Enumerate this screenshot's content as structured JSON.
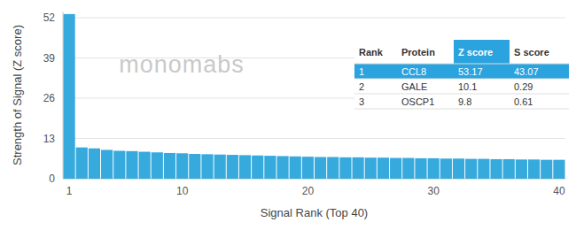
{
  "chart_data": {
    "type": "bar",
    "x_label": "Signal Rank (Top 40)",
    "y_label": "Strength of Signal (Z score)",
    "annotations": [
      "monomabs"
    ],
    "x": [
      1,
      2,
      3,
      4,
      5,
      6,
      7,
      8,
      9,
      10,
      11,
      12,
      13,
      14,
      15,
      16,
      17,
      18,
      19,
      20,
      21,
      22,
      23,
      24,
      25,
      26,
      27,
      28,
      29,
      30,
      31,
      32,
      33,
      34,
      35,
      36,
      37,
      38,
      39,
      40
    ],
    "values": [
      53.17,
      10.1,
      9.8,
      9.3,
      9.0,
      8.9,
      8.7,
      8.5,
      8.3,
      8.2,
      8.0,
      7.9,
      7.8,
      7.7,
      7.6,
      7.5,
      7.4,
      7.3,
      7.2,
      7.1,
      7.0,
      7.0,
      6.9,
      6.9,
      6.8,
      6.8,
      6.7,
      6.7,
      6.6,
      6.6,
      6.5,
      6.5,
      6.4,
      6.4,
      6.3,
      6.3,
      6.2,
      6.2,
      6.1,
      6.1
    ],
    "color": "#36a9dd",
    "xlim": [
      0.5,
      40.5
    ],
    "xticks": [
      1,
      10,
      20,
      30,
      40
    ],
    "ylim": [
      0,
      54
    ],
    "yticks": [
      0,
      13,
      26,
      39,
      52
    ],
    "grid": true
  },
  "table": {
    "columns": [
      "Rank",
      "Protein",
      "Z score",
      "S score"
    ],
    "rows": [
      [
        1,
        "CCL8",
        53.17,
        43.07
      ],
      [
        2,
        "GALE",
        10.1,
        0.29
      ],
      [
        3,
        "OSCP1",
        9.8,
        0.61
      ]
    ]
  }
}
